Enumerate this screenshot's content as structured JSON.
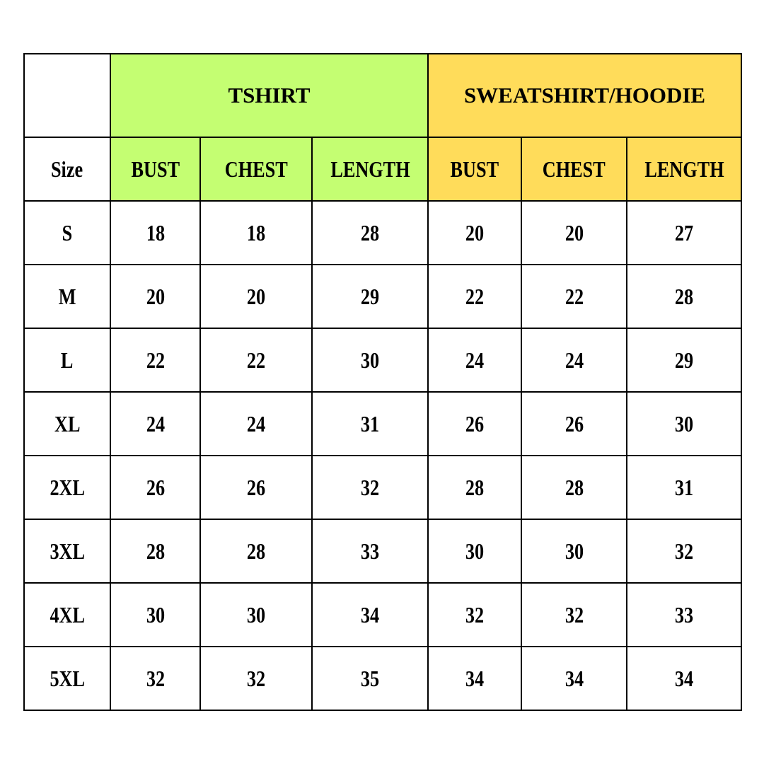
{
  "groups": {
    "tshirt": "TSHIRT",
    "sweatshirt": "SWEATSHIRT/HOODIE"
  },
  "columns": [
    "Size",
    "BUST",
    "CHEST",
    "LENGTH",
    "BUST",
    "CHEST",
    "LENGTH"
  ],
  "colors": {
    "tshirt": "#c4fe72",
    "sweatshirt": "#ffdc5a"
  },
  "rows": [
    [
      "S",
      "18",
      "18",
      "28",
      "20",
      "20",
      "27"
    ],
    [
      "M",
      "20",
      "20",
      "29",
      "22",
      "22",
      "28"
    ],
    [
      "L",
      "22",
      "22",
      "30",
      "24",
      "24",
      "29"
    ],
    [
      "XL",
      "24",
      "24",
      "31",
      "26",
      "26",
      "30"
    ],
    [
      "2XL",
      "26",
      "26",
      "32",
      "28",
      "28",
      "31"
    ],
    [
      "3XL",
      "28",
      "28",
      "33",
      "30",
      "30",
      "32"
    ],
    [
      "4XL",
      "30",
      "30",
      "34",
      "32",
      "32",
      "33"
    ],
    [
      "5XL",
      "32",
      "32",
      "35",
      "34",
      "34",
      "34"
    ]
  ]
}
